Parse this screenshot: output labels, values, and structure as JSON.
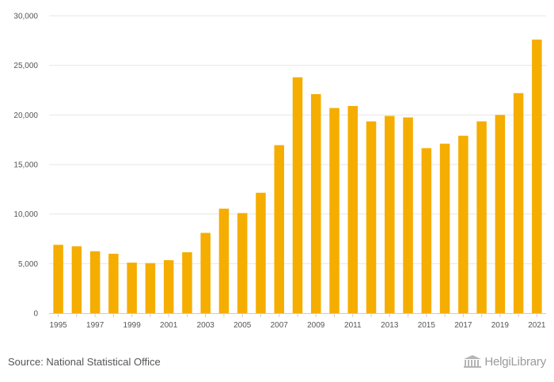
{
  "chart_data": {
    "type": "bar",
    "title": "",
    "xlabel": "",
    "ylabel": "",
    "categories": [
      "1995",
      "1996",
      "1997",
      "1998",
      "1999",
      "2000",
      "2001",
      "2002",
      "2003",
      "2004",
      "2005",
      "2006",
      "2007",
      "2008",
      "2009",
      "2010",
      "2011",
      "2012",
      "2013",
      "2014",
      "2015",
      "2016",
      "2017",
      "2018",
      "2019",
      "2020",
      "2021"
    ],
    "values": [
      6900,
      6750,
      6250,
      6000,
      5100,
      5050,
      5350,
      6150,
      8100,
      10550,
      10100,
      12150,
      16950,
      23800,
      22100,
      20700,
      20900,
      19350,
      19900,
      19750,
      16650,
      17100,
      17900,
      19350,
      20000,
      22200,
      27600
    ],
    "x_tick_labels": [
      "1995",
      "1997",
      "1999",
      "2001",
      "2003",
      "2005",
      "2007",
      "2009",
      "2011",
      "2013",
      "2015",
      "2017",
      "2019",
      "2021"
    ],
    "y_ticks": [
      0,
      5000,
      10000,
      15000,
      20000,
      25000,
      30000
    ],
    "y_tick_labels": [
      "0",
      "5,000",
      "10,000",
      "15,000",
      "20,000",
      "25,000",
      "30,000"
    ],
    "ylim": [
      0,
      30000
    ],
    "grid": true,
    "bar_color": "#f5ad00"
  },
  "footer": {
    "source": "Source: National Statistical Office",
    "brand": "HelgiLibrary"
  }
}
